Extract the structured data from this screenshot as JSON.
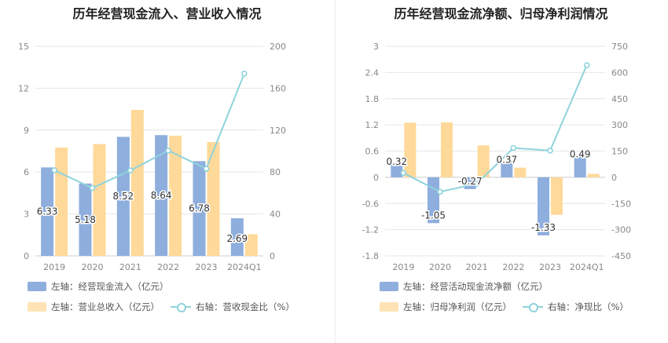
{
  "chart_data": [
    {
      "type": "bar",
      "title": "历年经营现金流入、营业收入情况",
      "categories": [
        "2019",
        "2020",
        "2021",
        "2022",
        "2023",
        "2024Q1"
      ],
      "left_axis": {
        "ylim": [
          0,
          15
        ],
        "ticks": [
          "0",
          "3",
          "6",
          "9",
          "12",
          "15"
        ]
      },
      "right_axis": {
        "ylim": [
          0,
          200
        ],
        "ticks": [
          "0",
          "40",
          "80",
          "120",
          "160",
          "200"
        ]
      },
      "grid": true,
      "legend_position": "bottom",
      "series": [
        {
          "name": "左轴：经营现金流入（亿元）",
          "axis": "left",
          "kind": "bar",
          "color": "#8eaedd",
          "values": [
            6.33,
            5.18,
            8.52,
            8.64,
            6.78,
            2.69
          ],
          "labels": [
            "6.33",
            "5.18",
            "8.52",
            "8.64",
            "6.78",
            "2.69"
          ]
        },
        {
          "name": "左轴：营业总收入（亿元）",
          "axis": "left",
          "kind": "bar",
          "color": "#ffd999",
          "values": [
            7.75,
            8.0,
            10.45,
            8.6,
            8.15,
            1.55
          ]
        },
        {
          "name": "右轴：营收现金比（%）",
          "axis": "right",
          "kind": "line",
          "color": "#8fd3dc",
          "values": [
            81.7,
            64.8,
            81.5,
            100.5,
            83.2,
            174.0
          ]
        }
      ]
    },
    {
      "type": "bar",
      "title": "历年经营现金流净额、归母净利润情况",
      "categories": [
        "2019",
        "2020",
        "2021",
        "2022",
        "2023",
        "2024Q1"
      ],
      "left_axis": {
        "ylim": [
          -1.8,
          3
        ],
        "ticks": [
          "-1.8",
          "-1.2",
          "-0.6",
          "0",
          "0.6",
          "1.2",
          "1.8",
          "2.4",
          "3"
        ]
      },
      "right_axis": {
        "ylim": [
          -450,
          750
        ],
        "ticks": [
          "-450",
          "-300",
          "-150",
          "0",
          "150",
          "300",
          "450",
          "600",
          "750"
        ]
      },
      "grid": true,
      "legend_position": "bottom",
      "series": [
        {
          "name": "左轴：经营活动现金流净额（亿元）",
          "axis": "left",
          "kind": "bar",
          "color": "#8eaedd",
          "values": [
            0.32,
            -1.05,
            -0.27,
            0.37,
            -1.33,
            0.49
          ],
          "labels": [
            "0.32",
            "-1.05",
            "-0.27",
            "0.37",
            "-1.33",
            "0.49"
          ]
        },
        {
          "name": "左轴：归母净利润（亿元）",
          "axis": "left",
          "kind": "bar",
          "color": "#ffd999",
          "values": [
            1.25,
            1.26,
            0.73,
            0.22,
            -0.86,
            0.08
          ]
        },
        {
          "name": "右轴：净现比（%）",
          "axis": "right",
          "kind": "line",
          "color": "#8fd3dc",
          "values": [
            25,
            -83,
            -37,
            168,
            153,
            642
          ]
        }
      ]
    }
  ]
}
